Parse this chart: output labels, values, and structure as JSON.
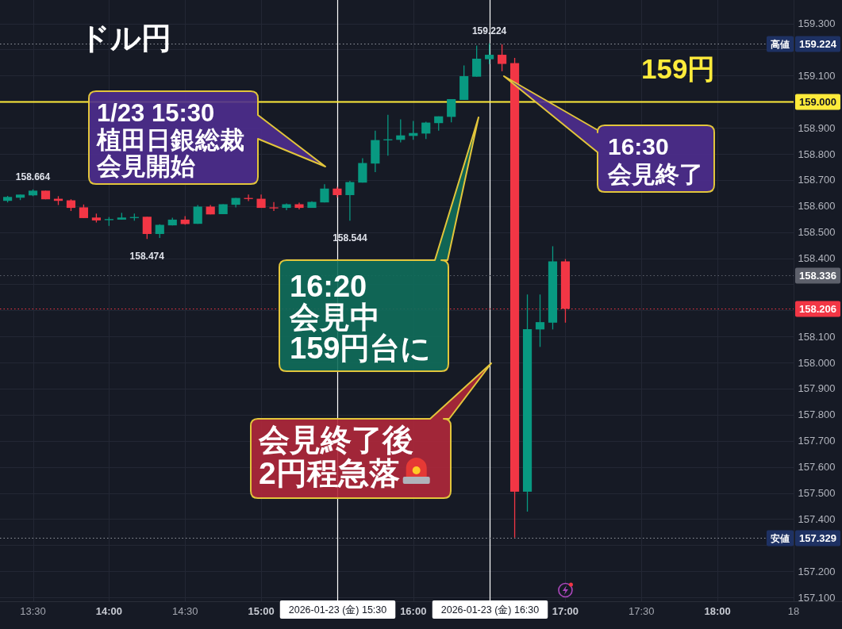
{
  "chart_data": {
    "type": "candlestick",
    "title": "ドル円",
    "x": [
      "2026-01-23T13:20",
      "2026-01-23T13:25",
      "2026-01-23T13:30",
      "2026-01-23T13:35",
      "2026-01-23T13:40",
      "2026-01-23T13:45",
      "2026-01-23T13:50",
      "2026-01-23T13:55",
      "2026-01-23T14:00",
      "2026-01-23T14:05",
      "2026-01-23T14:10",
      "2026-01-23T14:15",
      "2026-01-23T14:20",
      "2026-01-23T14:25",
      "2026-01-23T14:30",
      "2026-01-23T14:35",
      "2026-01-23T14:40",
      "2026-01-23T14:45",
      "2026-01-23T14:50",
      "2026-01-23T14:55",
      "2026-01-23T15:00",
      "2026-01-23T15:05",
      "2026-01-23T15:10",
      "2026-01-23T15:15",
      "2026-01-23T15:20",
      "2026-01-23T15:25",
      "2026-01-23T15:30",
      "2026-01-23T15:35",
      "2026-01-23T15:40",
      "2026-01-23T15:45",
      "2026-01-23T15:50",
      "2026-01-23T15:55",
      "2026-01-23T16:00",
      "2026-01-23T16:05",
      "2026-01-23T16:10",
      "2026-01-23T16:15",
      "2026-01-23T16:20",
      "2026-01-23T16:25",
      "2026-01-23T16:30",
      "2026-01-23T16:35",
      "2026-01-23T16:40",
      "2026-01-23T16:45",
      "2026-01-23T16:50",
      "2026-01-23T16:55",
      "2026-01-23T17:00"
    ],
    "ohlc": [
      [
        158.62,
        158.639,
        158.614,
        158.635
      ],
      [
        158.632,
        158.644,
        158.623,
        158.644
      ],
      [
        158.641,
        158.664,
        158.638,
        158.659
      ],
      [
        158.659,
        158.659,
        158.626,
        158.626
      ],
      [
        158.628,
        158.638,
        158.604,
        158.62
      ],
      [
        158.622,
        158.626,
        158.581,
        158.593
      ],
      [
        158.595,
        158.606,
        158.554,
        158.554
      ],
      [
        158.556,
        158.571,
        158.537,
        158.545
      ],
      [
        158.549,
        158.558,
        158.524,
        158.55
      ],
      [
        158.548,
        158.574,
        158.548,
        158.556
      ],
      [
        158.557,
        158.571,
        158.544,
        158.558
      ],
      [
        158.559,
        158.559,
        158.474,
        158.493
      ],
      [
        158.493,
        158.53,
        158.478,
        158.528
      ],
      [
        158.526,
        158.555,
        158.526,
        158.548
      ],
      [
        158.548,
        158.561,
        158.529,
        158.531
      ],
      [
        158.532,
        158.604,
        158.532,
        158.598
      ],
      [
        158.598,
        158.604,
        158.568,
        158.568
      ],
      [
        158.569,
        158.607,
        158.569,
        158.607
      ],
      [
        158.605,
        158.631,
        158.595,
        158.631
      ],
      [
        158.631,
        158.644,
        158.619,
        158.63
      ],
      [
        158.628,
        158.644,
        158.593,
        158.593
      ],
      [
        158.595,
        158.615,
        158.581,
        158.594
      ],
      [
        158.593,
        158.61,
        158.584,
        158.607
      ],
      [
        158.607,
        158.613,
        158.587,
        158.593
      ],
      [
        158.593,
        158.618,
        158.593,
        158.616
      ],
      [
        158.614,
        158.684,
        158.614,
        158.667
      ],
      [
        158.667,
        158.674,
        158.633,
        158.642
      ],
      [
        158.642,
        158.697,
        158.544,
        158.692
      ],
      [
        158.69,
        158.783,
        158.69,
        158.765
      ],
      [
        158.763,
        158.889,
        158.73,
        158.853
      ],
      [
        158.855,
        158.95,
        158.793,
        158.856
      ],
      [
        158.854,
        158.932,
        158.844,
        158.871
      ],
      [
        158.869,
        158.926,
        158.854,
        158.88
      ],
      [
        158.878,
        158.923,
        158.857,
        158.92
      ],
      [
        158.918,
        158.944,
        158.889,
        158.944
      ],
      [
        158.942,
        159.01,
        158.921,
        159.01
      ],
      [
        159.007,
        159.139,
        159.007,
        159.098
      ],
      [
        159.096,
        159.215,
        159.096,
        159.165
      ],
      [
        159.163,
        159.224,
        159.144,
        159.18
      ],
      [
        159.18,
        159.22,
        159.117,
        159.145
      ],
      [
        159.148,
        159.168,
        157.329,
        157.505
      ],
      [
        157.505,
        158.261,
        157.429,
        158.128
      ],
      [
        158.127,
        158.261,
        158.06,
        158.155
      ],
      [
        158.153,
        158.446,
        158.127,
        158.388
      ],
      [
        158.388,
        158.397,
        158.153,
        158.206
      ]
    ],
    "colors": [
      "#089981",
      "#089981",
      "#089981",
      "#f23645",
      "#f23645",
      "#f23645",
      "#f23645",
      "#f23645",
      "#089981",
      "#089981",
      "#089981",
      "#f23645",
      "#089981",
      "#089981",
      "#f23645",
      "#089981",
      "#f23645",
      "#089981",
      "#089981",
      "#f23645",
      "#f23645",
      "#f23645",
      "#089981",
      "#f23645",
      "#089981",
      "#089981",
      "#f23645",
      "#089981",
      "#089981",
      "#089981",
      "#089981",
      "#089981",
      "#089981",
      "#089981",
      "#089981",
      "#089981",
      "#089981",
      "#089981",
      "#089981",
      "#f23645",
      "#f23645",
      "#089981",
      "#089981",
      "#089981",
      "#f23645"
    ],
    "xlim": [
      "2026-01-23T13:17",
      "2026-01-23T18:30"
    ],
    "ylim": [
      157.085,
      159.39
    ],
    "xticks": [
      {
        "value": "2026-01-23T13:30",
        "label": "13:30"
      },
      {
        "value": "2026-01-23T14:00",
        "label": "14:00"
      },
      {
        "value": "2026-01-23T14:30",
        "label": "14:30"
      },
      {
        "value": "2026-01-23T15:00",
        "label": "15:00"
      },
      {
        "value": "2026-01-23T16:00",
        "label": "16:00"
      },
      {
        "value": "2026-01-23T17:00",
        "label": "17:00"
      },
      {
        "value": "2026-01-23T17:30",
        "label": "17:30"
      },
      {
        "value": "2026-01-23T18:00",
        "label": "18:00"
      },
      {
        "value": "2026-01-23T18:30",
        "label": "18"
      }
    ],
    "yticks": [
      {
        "value": 157.1,
        "label": "157.100"
      },
      {
        "value": 157.2,
        "label": "157.200"
      },
      {
        "value": 157.3,
        "label": null
      },
      {
        "value": 157.4,
        "label": "157.400"
      },
      {
        "value": 157.5,
        "label": "157.500"
      },
      {
        "value": 157.6,
        "label": "157.600"
      },
      {
        "value": 157.7,
        "label": "157.700"
      },
      {
        "value": 157.8,
        "label": "157.800"
      },
      {
        "value": 157.9,
        "label": "157.900"
      },
      {
        "value": 158.0,
        "label": "158.000"
      },
      {
        "value": 158.1,
        "label": "158.100"
      },
      {
        "value": 158.2,
        "label": null
      },
      {
        "value": 158.3,
        "label": null
      },
      {
        "value": 158.4,
        "label": "158.400"
      },
      {
        "value": 158.5,
        "label": "158.500"
      },
      {
        "value": 158.6,
        "label": "158.600"
      },
      {
        "value": 158.7,
        "label": "158.700"
      },
      {
        "value": 158.8,
        "label": "158.800"
      },
      {
        "value": 158.9,
        "label": "158.900"
      },
      {
        "value": 159.0,
        "label": null
      },
      {
        "value": 159.1,
        "label": "159.100"
      },
      {
        "value": 159.2,
        "label": null
      },
      {
        "value": 159.3,
        "label": "159.300"
      }
    ],
    "grid": true,
    "ref_lines": [
      {
        "axis": "x",
        "value": "2026-01-23T15:30",
        "label": "2026-01-23 (金) 15:30",
        "color": "#ffffff",
        "line_style": "solid"
      },
      {
        "axis": "x",
        "value": "2026-01-23T16:30",
        "label": "2026-01-23 (金) 16:30",
        "color": "#ffffff",
        "line_style": "solid"
      },
      {
        "axis": "y",
        "value": 159.0,
        "label": "159.000",
        "color": "#ffeb3b",
        "line_style": "solid"
      },
      {
        "axis": "y",
        "value": 159.224,
        "label": "高値 159.224",
        "color": "#9598a1",
        "line_style": "dotted"
      },
      {
        "axis": "y",
        "value": 157.329,
        "label": "安値 157.329",
        "color": "#9598a1",
        "line_style": "dotted"
      },
      {
        "axis": "y",
        "value": 158.336,
        "label": "158.336",
        "color": "#5d606b",
        "line_style": "dotted"
      },
      {
        "axis": "y",
        "value": 158.206,
        "label": "158.206",
        "color": "#f23645",
        "line_style": "dotted"
      }
    ],
    "annotations": [
      "1/23 15:30\n植田日銀総裁会見開始",
      "16:20\n会見中159円台に",
      "会見終了後2円程急落",
      "16:30\n会見終了",
      "159円",
      {
        "text": "158.664",
        "x": "2026-01-23T13:30",
        "y": 158.664
      },
      {
        "text": "158.474",
        "x": "2026-01-23T14:15",
        "y": 158.474
      },
      {
        "text": "158.544",
        "x": "2026-01-23T15:35",
        "y": 158.544
      },
      {
        "text": "159.224",
        "x": "2026-01-23T16:30",
        "y": 159.224
      }
    ]
  }
}
